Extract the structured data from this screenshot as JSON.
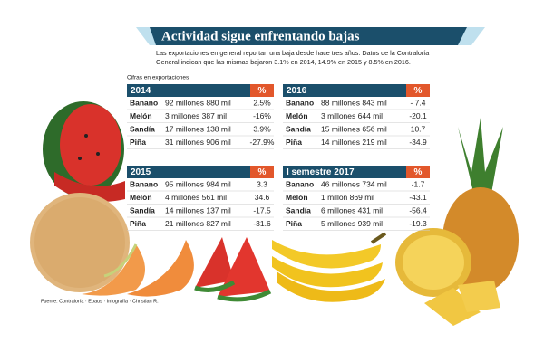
{
  "header": {
    "title": "Actividad sigue enfrentando bajas",
    "subtitle_lines": [
      "Las exportaciones en general reportan una baja desde hace tres años. Datos de la Contraloría",
      "General indican que las mismas bajaron 3.1% en 2014, 14.9% en 2015 y 8.5% en 2016."
    ]
  },
  "caption": "Cifras en exportaciones",
  "tables": [
    {
      "period": "2014",
      "pct_header": "%",
      "rows": [
        [
          "Banano",
          "92 millones 880 mil",
          "2.5%"
        ],
        [
          "Melón",
          "3 millones 387 mil",
          "-16%"
        ],
        [
          "Sandía",
          "17 millones 138 mil",
          "3.9%"
        ],
        [
          "Piña",
          "31 millones 906 mil",
          "-27.9%"
        ]
      ]
    },
    {
      "period": "2015",
      "pct_header": "%",
      "rows": [
        [
          "Banano",
          "95 millones 984 mil",
          "3.3"
        ],
        [
          "Melón",
          "4 millones 561 mil",
          "34.6"
        ],
        [
          "Sandía",
          "14 millones 137 mil",
          "-17.5"
        ],
        [
          "Piña",
          "21 millones 827 mil",
          "-31.6"
        ]
      ]
    },
    {
      "period": "2016",
      "pct_header": "%",
      "rows": [
        [
          "Banano",
          "88 millones 843 mil",
          "- 7.4"
        ],
        [
          "Melón",
          "3 millones 644 mil",
          "-20.1"
        ],
        [
          "Sandía",
          "15 millones 656 mil",
          "10.7"
        ],
        [
          "Piña",
          "14 millones 219 mil",
          "-34.9"
        ]
      ]
    },
    {
      "period": "I semestre 2017",
      "pct_header": "%",
      "rows": [
        [
          "Banano",
          "46 millones 734 mil",
          "-1.7"
        ],
        [
          "Melón",
          "1 millón 869 mil",
          "-43.1"
        ],
        [
          "Sandía",
          "6 millones 431 mil",
          "-56.4"
        ],
        [
          "Piña",
          "5 millones 939 mil",
          "-19.3"
        ]
      ]
    }
  ],
  "source": "Fuente: Contraloría · Epaus · Infografía · Christian R."
}
